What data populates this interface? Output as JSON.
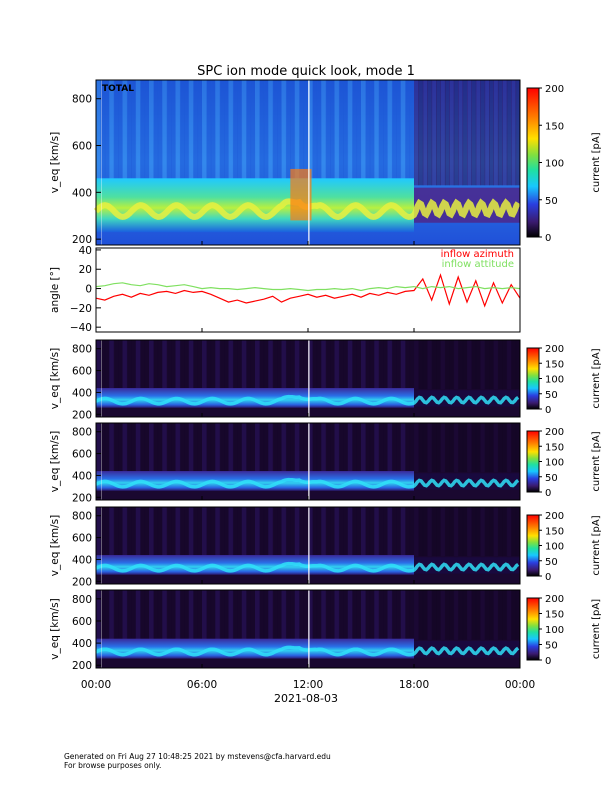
{
  "title": "SPC ion mode quick look, mode 1",
  "footer": {
    "line1": "Generated on Fri Aug 27 10:48:25 2021 by mstevens@cfa.harvard.edu",
    "line2": "For browse purposes only."
  },
  "xaxis": {
    "ticks": [
      "00:00",
      "06:00",
      "12:00",
      "18:00",
      "00:00"
    ],
    "tick_hours": [
      0,
      6,
      12,
      18,
      24
    ],
    "date_label": "2021-08-03",
    "range_hours": [
      0,
      24
    ]
  },
  "colorbar": {
    "label": "current [pA]",
    "colormap": "rainbow-black-to-red"
  },
  "chart_data": [
    {
      "type": "heatmap",
      "panel_label": "TOTAL",
      "ylabel": "v_eq [km/s]",
      "ylim": [
        175,
        880
      ],
      "yticks": [
        "200",
        "400",
        "600",
        "800"
      ],
      "ytick_values": [
        200,
        400,
        600,
        800
      ],
      "colorbar_range": [
        0,
        200
      ],
      "colorbar_ticks": [
        "0",
        "50",
        "100",
        "150",
        "200"
      ],
      "colorbar_tick_values": [
        0,
        50,
        100,
        150,
        200
      ],
      "colors": {
        "background": "#2b6fe0",
        "band": "#8ee04a",
        "peak": "#ff6a00",
        "late_background": "#3a1560"
      }
    },
    {
      "type": "line",
      "ylabel": "angle [°]",
      "ylim": [
        -45,
        42
      ],
      "yticks": [
        "40",
        "20",
        "0",
        "−20",
        "−40"
      ],
      "ytick_values": [
        40,
        20,
        0,
        -20,
        -40
      ],
      "series": [
        {
          "name": "inflow azimuth",
          "color": "#ff0000",
          "x": [
            0,
            0.5,
            1,
            1.5,
            2,
            2.5,
            3,
            3.5,
            4,
            4.5,
            5,
            5.5,
            6,
            6.5,
            7,
            7.5,
            8,
            8.5,
            9,
            9.5,
            10,
            10.5,
            11,
            11.5,
            12,
            12.5,
            13,
            13.5,
            14,
            14.5,
            15,
            15.5,
            16,
            16.5,
            17,
            17.5,
            18,
            18.5,
            19,
            19.5,
            20,
            20.5,
            21,
            21.5,
            22,
            22.5,
            23,
            23.5,
            24
          ],
          "y": [
            -10,
            -12,
            -8,
            -6,
            -9,
            -5,
            -7,
            -4,
            -3,
            -5,
            -2,
            -4,
            -3,
            -6,
            -10,
            -14,
            -12,
            -15,
            -13,
            -11,
            -8,
            -14,
            -10,
            -8,
            -6,
            -9,
            -7,
            -10,
            -8,
            -6,
            -9,
            -5,
            -7,
            -4,
            -6,
            -3,
            -2,
            10,
            -12,
            14,
            -16,
            12,
            -14,
            8,
            -18,
            6,
            -15,
            4,
            -10
          ]
        },
        {
          "name": "inflow attitude",
          "color": "#7fe060",
          "x": [
            0,
            0.5,
            1,
            1.5,
            2,
            2.5,
            3,
            3.5,
            4,
            4.5,
            5,
            5.5,
            6,
            6.5,
            7,
            7.5,
            8,
            8.5,
            9,
            9.5,
            10,
            10.5,
            11,
            11.5,
            12,
            12.5,
            13,
            13.5,
            14,
            14.5,
            15,
            15.5,
            16,
            16.5,
            17,
            17.5,
            18,
            18.5,
            19,
            19.5,
            20,
            20.5,
            21,
            21.5,
            22,
            22.5,
            23,
            23.5,
            24
          ],
          "y": [
            2,
            3,
            5,
            6,
            4,
            3,
            5,
            4,
            2,
            3,
            4,
            2,
            0,
            1,
            0,
            0,
            -1,
            0,
            1,
            0,
            -1,
            -1,
            0,
            -1,
            -2,
            -1,
            -1,
            0,
            -1,
            0,
            -2,
            0,
            1,
            0,
            2,
            1,
            2,
            0,
            2,
            1,
            2,
            0,
            1,
            2,
            0,
            1,
            0,
            1,
            0
          ]
        }
      ]
    },
    {
      "type": "heatmap",
      "panel_label": "",
      "ylabel": "v_eq [km/s]",
      "ylim": [
        175,
        880
      ],
      "yticks": [
        "200",
        "400",
        "600",
        "800"
      ],
      "ytick_values": [
        200,
        400,
        600,
        800
      ],
      "colorbar_range": [
        0,
        200
      ],
      "colorbar_ticks": [
        "0",
        "50",
        "100",
        "150",
        "200"
      ],
      "colorbar_tick_values": [
        0,
        50,
        100,
        150,
        200
      ]
    },
    {
      "type": "heatmap",
      "panel_label": "",
      "ylabel": "v_eq [km/s]",
      "ylim": [
        175,
        880
      ],
      "yticks": [
        "200",
        "400",
        "600",
        "800"
      ],
      "ytick_values": [
        200,
        400,
        600,
        800
      ],
      "colorbar_range": [
        0,
        200
      ],
      "colorbar_ticks": [
        "0",
        "50",
        "100",
        "150",
        "200"
      ],
      "colorbar_tick_values": [
        0,
        50,
        100,
        150,
        200
      ]
    },
    {
      "type": "heatmap",
      "panel_label": "",
      "ylabel": "v_eq [km/s]",
      "ylim": [
        175,
        880
      ],
      "yticks": [
        "200",
        "400",
        "600",
        "800"
      ],
      "ytick_values": [
        200,
        400,
        600,
        800
      ],
      "colorbar_range": [
        0,
        200
      ],
      "colorbar_ticks": [
        "0",
        "50",
        "100",
        "150",
        "200"
      ],
      "colorbar_tick_values": [
        0,
        50,
        100,
        150,
        200
      ]
    },
    {
      "type": "heatmap",
      "panel_label": "",
      "ylabel": "v_eq [km/s]",
      "ylim": [
        175,
        880
      ],
      "yticks": [
        "200",
        "400",
        "600",
        "800"
      ],
      "ytick_values": [
        200,
        400,
        600,
        800
      ],
      "colorbar_range": [
        0,
        200
      ],
      "colorbar_ticks": [
        "0",
        "50",
        "100",
        "150",
        "200"
      ],
      "colorbar_tick_values": [
        0,
        50,
        100,
        150,
        200
      ]
    }
  ]
}
